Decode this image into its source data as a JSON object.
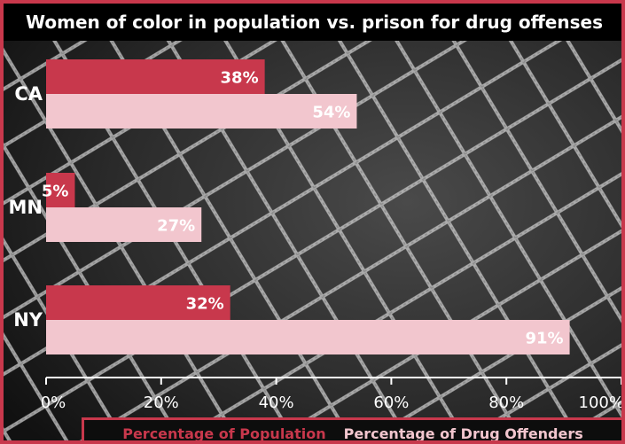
{
  "chart_data": {
    "type": "bar",
    "orientation": "horizontal",
    "title": "Women of color in population vs. prison for drug offenses",
    "categories": [
      "CA",
      "MN",
      "NY"
    ],
    "series": [
      {
        "name": "Percentage of Population",
        "values": [
          38,
          5,
          32
        ],
        "labels": [
          "38%",
          "5%",
          "32%"
        ],
        "color": "#c8384c"
      },
      {
        "name": "Percentage of Drug Offenders",
        "values": [
          54,
          27,
          91
        ],
        "labels": [
          "54%",
          "27%",
          "91%"
        ],
        "color": "#f2c6ce"
      }
    ],
    "xlim": [
      0,
      100
    ],
    "xticks": [
      "0%",
      "20%",
      "40%",
      "60%",
      "80%",
      "100%"
    ],
    "grid": false,
    "legend_position": "bottom"
  }
}
